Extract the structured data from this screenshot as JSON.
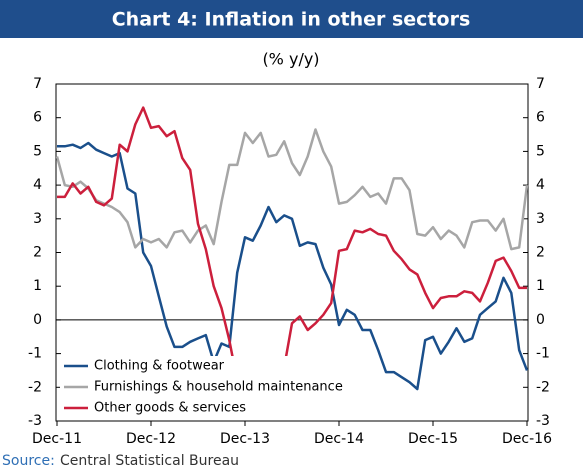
{
  "chart_data": {
    "type": "line",
    "title": "Chart 4: Inflation in other sectors",
    "subtitle": "(% y/y)",
    "source_label": "Source:",
    "source": "Central Statistical Bureau",
    "categories": [
      "Dec-11",
      null,
      null,
      null,
      null,
      null,
      null,
      null,
      null,
      null,
      null,
      null,
      "Dec-12",
      null,
      null,
      null,
      null,
      null,
      null,
      null,
      null,
      null,
      null,
      null,
      "Dec-13",
      null,
      null,
      null,
      null,
      null,
      null,
      null,
      null,
      null,
      null,
      null,
      "Dec-14",
      null,
      null,
      null,
      null,
      null,
      null,
      null,
      null,
      null,
      null,
      null,
      "Dec-15",
      null,
      null,
      null,
      null,
      null,
      null,
      null,
      null,
      null,
      null,
      null,
      "Dec-16"
    ],
    "series": [
      {
        "name": "Clothing & footwear",
        "color": "#1a4f8b",
        "values": [
          5.15,
          5.15,
          5.2,
          5.1,
          5.25,
          5.05,
          4.95,
          4.85,
          4.95,
          3.9,
          3.75,
          2.0,
          1.6,
          0.7,
          -0.2,
          -0.8,
          -0.8,
          -0.65,
          -0.55,
          -0.45,
          -1.25,
          -0.7,
          -0.8,
          1.4,
          2.45,
          2.35,
          2.8,
          3.35,
          2.9,
          3.1,
          3.0,
          2.2,
          2.3,
          2.25,
          1.55,
          1.05,
          -0.15,
          0.3,
          0.15,
          -0.3,
          -0.3,
          -0.9,
          -1.55,
          -1.55,
          -1.7,
          -1.85,
          -2.05,
          -0.6,
          -0.5,
          -1.0,
          -0.65,
          -0.25,
          -0.65,
          -0.55,
          0.15,
          0.35,
          0.55,
          1.25,
          0.8,
          -0.9,
          -1.5
        ]
      },
      {
        "name": "Furnishings & household maintenance",
        "color": "#a6a6a6",
        "values": [
          4.85,
          4.0,
          3.95,
          4.1,
          3.9,
          3.55,
          3.45,
          3.35,
          3.2,
          2.9,
          2.15,
          2.4,
          2.3,
          2.4,
          2.15,
          2.6,
          2.65,
          2.3,
          2.65,
          2.8,
          2.25,
          3.5,
          4.6,
          4.6,
          5.55,
          5.25,
          5.55,
          4.85,
          4.9,
          5.3,
          4.65,
          4.3,
          4.85,
          5.65,
          5.0,
          4.55,
          3.45,
          3.5,
          3.7,
          3.95,
          3.65,
          3.75,
          3.45,
          4.2,
          4.2,
          3.85,
          2.55,
          2.5,
          2.75,
          2.4,
          2.65,
          2.5,
          2.15,
          2.9,
          2.95,
          2.95,
          2.65,
          3.0,
          2.1,
          2.15,
          4.0
        ]
      },
      {
        "name": "Other goods & services",
        "color": "#cc1f3c",
        "values": [
          3.65,
          3.65,
          4.05,
          3.75,
          3.95,
          3.5,
          3.4,
          3.6,
          5.2,
          5.0,
          5.8,
          6.3,
          5.7,
          5.75,
          5.45,
          5.6,
          4.8,
          4.45,
          2.85,
          2.1,
          1.0,
          0.35,
          -0.6,
          -1.8,
          -1.95,
          -2.2,
          -2.45,
          -2.4,
          -2.4,
          -1.4,
          -0.1,
          0.1,
          -0.3,
          -0.1,
          0.15,
          0.5,
          2.05,
          2.1,
          2.65,
          2.6,
          2.7,
          2.55,
          2.5,
          2.05,
          1.8,
          1.5,
          1.35,
          0.8,
          0.35,
          0.65,
          0.7,
          0.7,
          0.85,
          0.8,
          0.55,
          1.1,
          1.75,
          1.85,
          1.45,
          0.95,
          0.95
        ]
      }
    ],
    "ylim": [
      -3,
      7
    ],
    "yticks": [
      -3,
      -2,
      -1,
      0,
      1,
      2,
      3,
      4,
      5,
      6,
      7
    ],
    "y2lim": [
      -3,
      7
    ],
    "y2ticks": [
      -3,
      -2,
      -1,
      0,
      1,
      2,
      3,
      4,
      5,
      6,
      7
    ],
    "legend": "bottom-left"
  }
}
